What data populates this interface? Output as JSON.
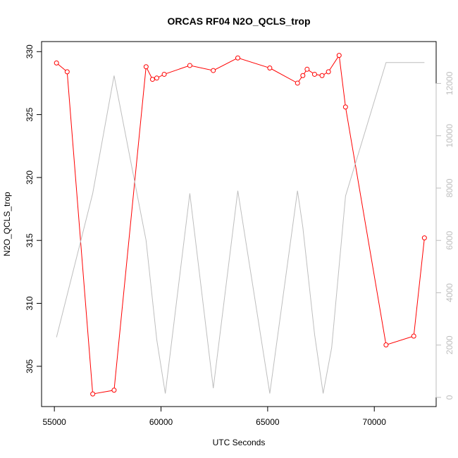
{
  "chart_data": {
    "type": "line",
    "title": "ORCAS RF04 N2O_QCLS_trop",
    "xlabel": "UTC Seconds",
    "ylabel": "N2O_QCLS_trop",
    "x_ticks": [
      "55000",
      "60000",
      "65000",
      "70000"
    ],
    "y_ticks": [
      "305",
      "310",
      "315",
      "320",
      "325",
      "330"
    ],
    "y2_ticks": [
      "0",
      "2000",
      "4000",
      "6000",
      "8000",
      "10000",
      "12000"
    ],
    "xlim": [
      54400,
      72900
    ],
    "ylim": [
      301.8,
      330.8
    ],
    "y2lim": [
      -350,
      13600
    ],
    "colors": {
      "primary": "#ff0000",
      "secondary": "#bebebe"
    },
    "series": [
      {
        "axis": "left",
        "color": "#ff0000",
        "points": [
          [
            55100,
            329.1
          ],
          [
            55600,
            328.4
          ],
          [
            56800,
            302.8
          ],
          [
            57800,
            303.1
          ],
          [
            59300,
            328.8
          ],
          [
            59600,
            327.8
          ],
          [
            59800,
            327.9
          ],
          [
            60150,
            328.2
          ],
          [
            61350,
            328.9
          ],
          [
            62450,
            328.5
          ],
          [
            63600,
            329.5
          ],
          [
            65100,
            328.7
          ],
          [
            66400,
            327.5
          ],
          [
            66650,
            328.1
          ],
          [
            66850,
            328.6
          ],
          [
            67200,
            328.2
          ],
          [
            67550,
            328.1
          ],
          [
            67850,
            328.4
          ],
          [
            68350,
            329.7
          ],
          [
            68650,
            325.6
          ],
          [
            70550,
            306.7
          ],
          [
            71850,
            307.4
          ],
          [
            72350,
            315.2
          ]
        ]
      },
      {
        "axis": "right",
        "color": "#bebebe",
        "points": [
          [
            55100,
            2300
          ],
          [
            56800,
            7800
          ],
          [
            57800,
            12300
          ],
          [
            59300,
            6000
          ],
          [
            59800,
            2200
          ],
          [
            60200,
            150
          ],
          [
            61350,
            7800
          ],
          [
            62450,
            350
          ],
          [
            63600,
            7900
          ],
          [
            65100,
            150
          ],
          [
            66400,
            7900
          ],
          [
            66650,
            6500
          ],
          [
            67200,
            2400
          ],
          [
            67600,
            150
          ],
          [
            68000,
            1900
          ],
          [
            68650,
            7700
          ],
          [
            70550,
            12800
          ],
          [
            72350,
            12800
          ]
        ]
      }
    ]
  }
}
